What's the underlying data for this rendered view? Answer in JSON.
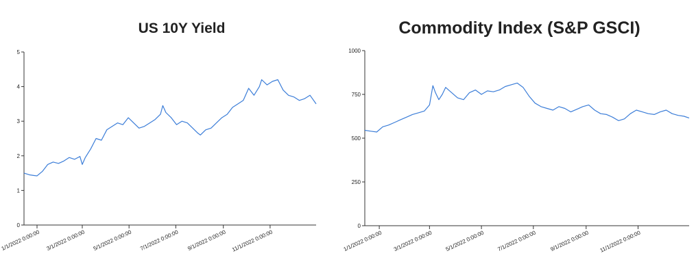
{
  "chart_data": [
    {
      "type": "line",
      "title": "US 10Y Yield",
      "xlabel": "",
      "ylabel": "",
      "ylim": [
        0,
        5
      ],
      "yticks": [
        0,
        1,
        2,
        3,
        4,
        5
      ],
      "xticks": [
        "1/1/2022 0:00:00",
        "3/1/2022 0:00:00",
        "5/1/2022 0:00:00",
        "7/1/2022 0:00:00",
        "9/1/2022 0:00:00",
        "11/1/2022 0:00:00"
      ],
      "xlim": [
        "2021-12-15",
        "2022-12-31"
      ],
      "grid": false,
      "color": "#3b7dd8",
      "series": [
        {
          "x": [
            "2021-12-15",
            "2021-12-22",
            "2022-01-01",
            "2022-01-08",
            "2022-01-15",
            "2022-01-22",
            "2022-01-29",
            "2022-02-05",
            "2022-02-12",
            "2022-02-19",
            "2022-02-26",
            "2022-03-01",
            "2022-03-05",
            "2022-03-12",
            "2022-03-19",
            "2022-03-26",
            "2022-04-02",
            "2022-04-09",
            "2022-04-16",
            "2022-04-23",
            "2022-04-30",
            "2022-05-07",
            "2022-05-14",
            "2022-05-21",
            "2022-05-28",
            "2022-06-04",
            "2022-06-11",
            "2022-06-14",
            "2022-06-18",
            "2022-06-25",
            "2022-07-02",
            "2022-07-09",
            "2022-07-16",
            "2022-07-23",
            "2022-07-30",
            "2022-08-02",
            "2022-08-09",
            "2022-08-16",
            "2022-08-23",
            "2022-08-30",
            "2022-09-06",
            "2022-09-13",
            "2022-09-20",
            "2022-09-27",
            "2022-10-04",
            "2022-10-11",
            "2022-10-18",
            "2022-10-21",
            "2022-10-28",
            "2022-11-04",
            "2022-11-11",
            "2022-11-18",
            "2022-11-25",
            "2022-12-02",
            "2022-12-09",
            "2022-12-16",
            "2022-12-23",
            "2022-12-31"
          ],
          "values": [
            1.5,
            1.45,
            1.42,
            1.55,
            1.75,
            1.82,
            1.78,
            1.85,
            1.95,
            1.9,
            1.98,
            1.75,
            1.95,
            2.2,
            2.5,
            2.45,
            2.75,
            2.85,
            2.95,
            2.9,
            3.1,
            2.95,
            2.8,
            2.85,
            2.95,
            3.05,
            3.2,
            3.45,
            3.25,
            3.1,
            2.9,
            3.0,
            2.95,
            2.8,
            2.65,
            2.6,
            2.75,
            2.8,
            2.95,
            3.1,
            3.2,
            3.4,
            3.5,
            3.6,
            3.95,
            3.75,
            4.0,
            4.2,
            4.05,
            4.15,
            4.2,
            3.9,
            3.75,
            3.7,
            3.6,
            3.65,
            3.75,
            3.5
          ]
        }
      ]
    },
    {
      "type": "line",
      "title": "Commodity Index (S&P GSCI)",
      "xlabel": "",
      "ylabel": "",
      "ylim": [
        0,
        1000
      ],
      "yticks": [
        0,
        250,
        500,
        750,
        1000
      ],
      "xticks": [
        "1/1/2022 0:00:00",
        "3/1/2022 0:00:00",
        "5/1/2022 0:00:00",
        "7/1/2022 0:00:00",
        "9/1/2022 0:00:00",
        "11/1/2022 0:00:00"
      ],
      "xlim": [
        "2021-12-15",
        "2022-12-31"
      ],
      "grid": false,
      "color": "#3b7dd8",
      "series": [
        {
          "x": [
            "2021-12-15",
            "2021-12-22",
            "2021-12-29",
            "2022-01-05",
            "2022-01-12",
            "2022-01-19",
            "2022-01-26",
            "2022-02-02",
            "2022-02-09",
            "2022-02-16",
            "2022-02-23",
            "2022-03-01",
            "2022-03-05",
            "2022-03-08",
            "2022-03-12",
            "2022-03-16",
            "2022-03-20",
            "2022-03-27",
            "2022-04-03",
            "2022-04-10",
            "2022-04-17",
            "2022-04-24",
            "2022-05-01",
            "2022-05-08",
            "2022-05-15",
            "2022-05-22",
            "2022-05-29",
            "2022-06-05",
            "2022-06-12",
            "2022-06-19",
            "2022-06-26",
            "2022-07-03",
            "2022-07-10",
            "2022-07-17",
            "2022-07-24",
            "2022-07-31",
            "2022-08-07",
            "2022-08-14",
            "2022-08-21",
            "2022-08-28",
            "2022-09-04",
            "2022-09-11",
            "2022-09-18",
            "2022-09-25",
            "2022-10-02",
            "2022-10-09",
            "2022-10-16",
            "2022-10-23",
            "2022-10-30",
            "2022-11-06",
            "2022-11-13",
            "2022-11-20",
            "2022-11-27",
            "2022-12-04",
            "2022-12-11",
            "2022-12-18",
            "2022-12-25",
            "2022-12-31"
          ],
          "values": [
            545,
            540,
            535,
            565,
            575,
            590,
            605,
            620,
            635,
            645,
            655,
            690,
            800,
            760,
            720,
            750,
            790,
            760,
            730,
            720,
            760,
            775,
            750,
            770,
            765,
            775,
            795,
            805,
            815,
            790,
            740,
            700,
            680,
            670,
            660,
            680,
            670,
            650,
            665,
            680,
            690,
            660,
            640,
            635,
            620,
            600,
            610,
            640,
            660,
            650,
            640,
            635,
            650,
            660,
            640,
            630,
            625,
            615
          ]
        }
      ]
    }
  ]
}
